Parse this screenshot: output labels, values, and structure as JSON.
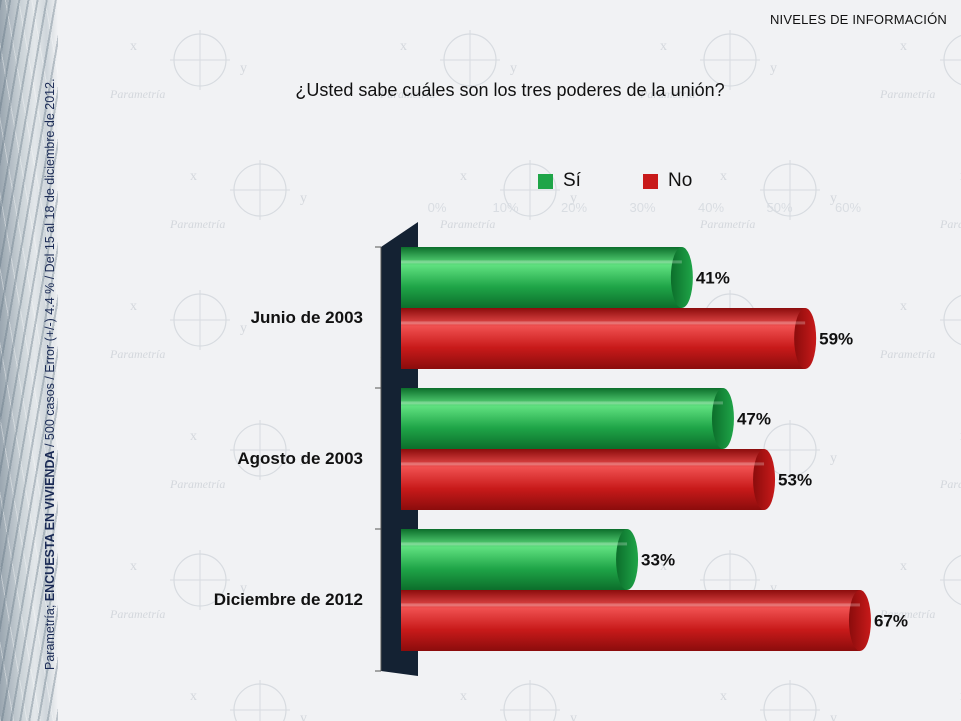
{
  "header": {
    "section_label": "NIVELES DE INFORMACIÓN",
    "question": "¿Usted sabe cuáles son los tres poderes de la unión?"
  },
  "side_note": {
    "prefix": "Parametría; ",
    "survey": "ENCUESTA EN VIVIENDA",
    "details": " / 500 casos / Error (+/-) 4.4 % / Del 15  al 18  de diciembre de 2012."
  },
  "background": {
    "watermark_text": "Parametría"
  },
  "colors": {
    "si": "#1fa548",
    "no": "#c81a1a",
    "back_wall": "#142233"
  },
  "chart_data": {
    "type": "bar",
    "orientation": "horizontal",
    "categories": [
      "Junio de 2003",
      "Agosto de 2003",
      "Diciembre de 2012"
    ],
    "series": [
      {
        "name": "Sí",
        "values": [
          41,
          47,
          33
        ],
        "labels": [
          "41%",
          "47%",
          "33%"
        ],
        "color": "#1fa548"
      },
      {
        "name": "No",
        "values": [
          59,
          53,
          67
        ],
        "labels": [
          "59%",
          "53%",
          "67%"
        ],
        "color": "#c81a1a"
      }
    ],
    "x_ticks": [
      "0%",
      "10%",
      "20%",
      "30%",
      "40%",
      "50%",
      "60%"
    ],
    "xlim": [
      0,
      70
    ],
    "legend_position": "top"
  }
}
